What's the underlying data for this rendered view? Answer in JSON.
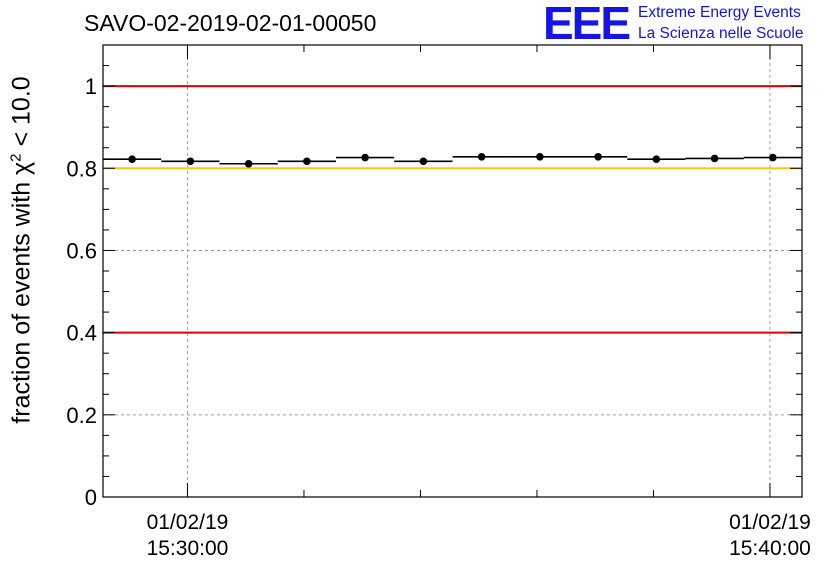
{
  "title": "SAVO-02-2019-02-01-00050",
  "logo": {
    "mark": "EEE",
    "line1": "Extreme Energy Events",
    "line2": "La Scienza nelle Scuole",
    "color": "#1414e6"
  },
  "chart_data": {
    "type": "scatter",
    "title": "SAVO-02-2019-02-01-00050",
    "ylabel": "fraction of events with",
    "ylabel_symbol": "χ",
    "ylabel_exp": "2",
    "ylabel_tail": " < 10.0",
    "ylim": [
      0,
      1.1
    ],
    "yticks": [
      0,
      0.2,
      0.4,
      0.6,
      0.8,
      1
    ],
    "ytick_labels": [
      "0",
      "0.2",
      "0.4",
      "0.6",
      "0.8",
      "1"
    ],
    "xlim": [
      -1.45,
      10.55
    ],
    "xtick_positions": [
      0,
      10
    ],
    "xtick_labels": [
      {
        "date": "01/02/19",
        "time": "15:30:00"
      },
      {
        "date": "01/02/19",
        "time": "15:40:00"
      }
    ],
    "grid": true,
    "reference_lines": [
      {
        "y": 1.0,
        "color": "#e00000"
      },
      {
        "y": 0.8,
        "color": "#ffc800"
      },
      {
        "y": 0.4,
        "color": "#e00000"
      }
    ],
    "points": [
      {
        "x": -0.95,
        "y": 0.822
      },
      {
        "x": 0.05,
        "y": 0.817
      },
      {
        "x": 1.05,
        "y": 0.811
      },
      {
        "x": 2.05,
        "y": 0.817
      },
      {
        "x": 3.05,
        "y": 0.826
      },
      {
        "x": 4.05,
        "y": 0.817
      },
      {
        "x": 5.05,
        "y": 0.828
      },
      {
        "x": 6.05,
        "y": 0.828
      },
      {
        "x": 7.05,
        "y": 0.828
      },
      {
        "x": 8.05,
        "y": 0.822
      },
      {
        "x": 9.05,
        "y": 0.824
      },
      {
        "x": 10.05,
        "y": 0.826
      }
    ],
    "bin_half_width": 0.5,
    "marker_color": "#000000"
  }
}
